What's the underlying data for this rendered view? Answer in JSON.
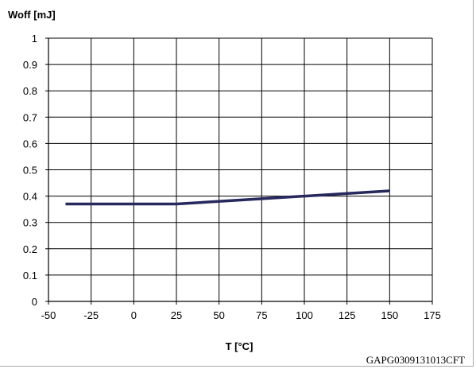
{
  "chart_data": {
    "type": "line",
    "ylabel": "Woff [mJ]",
    "xlabel": "T [°C]",
    "figure_code": "GAPG0309131013CFT",
    "xlim": [
      -50,
      175
    ],
    "ylim": [
      0,
      1
    ],
    "xticks": [
      -50,
      -25,
      0,
      25,
      50,
      75,
      100,
      125,
      150,
      175
    ],
    "yticks": [
      0,
      0.1,
      0.2,
      0.3,
      0.4,
      0.5,
      0.6,
      0.7,
      0.8,
      0.9,
      1
    ],
    "grid": true,
    "series": [
      {
        "x": [
          -40,
          25,
          150
        ],
        "y": [
          0.37,
          0.37,
          0.42
        ],
        "color": "#26285e"
      }
    ]
  }
}
